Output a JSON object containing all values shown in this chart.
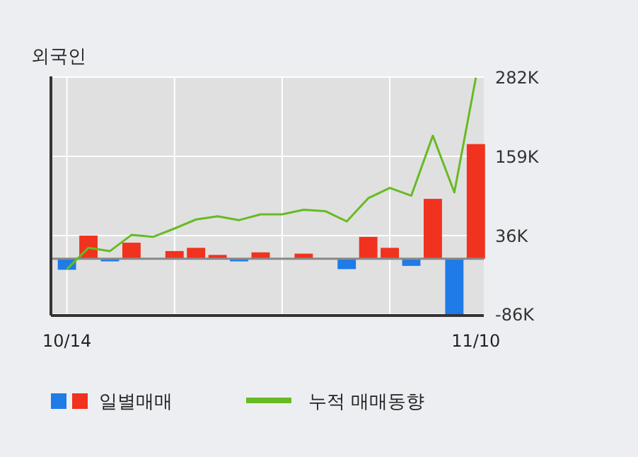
{
  "chart_data": {
    "type": "bar",
    "title": "외국인",
    "categories": [
      "10/14",
      null,
      null,
      null,
      null,
      null,
      null,
      null,
      null,
      null,
      null,
      null,
      null,
      null,
      null,
      null,
      null,
      null,
      null,
      "11/10"
    ],
    "series": [
      {
        "name": "일별매매",
        "colors": [
          "#1e7be8",
          "#f0321e",
          "#1e7be8",
          "#f0321e",
          "#f0321e",
          "#f0321e",
          "#f0321e",
          "#f0321e",
          "#1e7be8",
          "#f0321e",
          "#f0321e",
          "#f0321e",
          "#f0321e",
          "#1e7be8",
          "#f0321e",
          "#f0321e",
          "#1e7be8",
          "#f0321e",
          "#1e7be8",
          "#f0321e"
        ],
        "values": [
          -17,
          36,
          -4,
          25,
          0,
          12,
          17,
          6,
          -4,
          10,
          0,
          8,
          0,
          -16,
          34,
          17,
          -11,
          93,
          -86,
          178
        ]
      },
      {
        "name": "누적 매매동향",
        "type": "line",
        "color": "#66bb22",
        "values": [
          -16,
          17,
          12,
          37,
          34,
          47,
          61,
          66,
          60,
          69,
          69,
          76,
          74,
          58,
          94,
          110,
          98,
          191,
          103,
          281
        ]
      }
    ],
    "ylim": [
      -88,
      283
    ],
    "yticks": [
      {
        "value": -86,
        "label": "-86K"
      },
      {
        "value": 36,
        "label": "36K"
      },
      {
        "value": 159,
        "label": "159K"
      },
      {
        "value": 282,
        "label": "282K"
      }
    ],
    "grid": true,
    "legend": "bottom"
  }
}
